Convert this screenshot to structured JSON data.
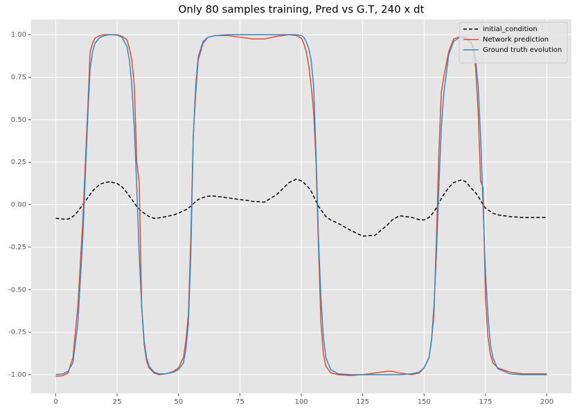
{
  "chart_data": {
    "type": "line",
    "title": "Only 80 samples training, Pred vs G.T, 240 x dt",
    "x": [
      0,
      3,
      5,
      7,
      9,
      11,
      13,
      14,
      15,
      16,
      18,
      20,
      22,
      25,
      27,
      29,
      30,
      31,
      32,
      33,
      34,
      35,
      36,
      37,
      38,
      40,
      42,
      45,
      48,
      50,
      52,
      53,
      54,
      55,
      56,
      57,
      58,
      60,
      62,
      65,
      70,
      75,
      78,
      80,
      85,
      90,
      95,
      98,
      100,
      101,
      102,
      103,
      104,
      105,
      106,
      107,
      108,
      109,
      110,
      112,
      115,
      120,
      125,
      130,
      135,
      137,
      140,
      145,
      148,
      150,
      152,
      153,
      154,
      155,
      156,
      157,
      158,
      160,
      162,
      165,
      167,
      169,
      170,
      171,
      172,
      173,
      174,
      175,
      176,
      177,
      178,
      180,
      185,
      190,
      200
    ],
    "series": [
      {
        "name": "initial_condition",
        "color": "#000000",
        "linestyle": "dashed",
        "values": [
          -0.08,
          -0.085,
          -0.085,
          -0.07,
          -0.04,
          0.0,
          0.04,
          0.06,
          0.08,
          0.095,
          0.12,
          0.13,
          0.135,
          0.125,
          0.105,
          0.07,
          0.05,
          0.03,
          0.01,
          -0.01,
          -0.025,
          -0.04,
          -0.05,
          -0.06,
          -0.07,
          -0.08,
          -0.078,
          -0.07,
          -0.06,
          -0.05,
          -0.035,
          -0.03,
          -0.02,
          -0.01,
          0.005,
          0.02,
          0.03,
          0.042,
          0.05,
          0.05,
          0.04,
          0.03,
          0.025,
          0.02,
          0.015,
          0.06,
          0.13,
          0.15,
          0.14,
          0.13,
          0.115,
          0.1,
          0.08,
          0.05,
          0.02,
          -0.01,
          -0.03,
          -0.05,
          -0.07,
          -0.09,
          -0.11,
          -0.15,
          -0.185,
          -0.18,
          -0.12,
          -0.09,
          -0.065,
          -0.075,
          -0.088,
          -0.09,
          -0.075,
          -0.06,
          -0.04,
          -0.02,
          0.01,
          0.035,
          0.06,
          0.1,
          0.13,
          0.145,
          0.135,
          0.1,
          0.085,
          0.07,
          0.05,
          0.025,
          0.0,
          -0.02,
          -0.03,
          -0.04,
          -0.05,
          -0.06,
          -0.07,
          -0.075,
          -0.075
        ]
      },
      {
        "name": "Network prediction",
        "color": "#E24A33",
        "linestyle": "solid",
        "values": [
          -1.01,
          -1.005,
          -0.99,
          -0.9,
          -0.6,
          -0.1,
          0.55,
          0.9,
          0.95,
          0.98,
          0.995,
          1.0,
          1.0,
          1.0,
          0.99,
          0.97,
          0.92,
          0.85,
          0.7,
          0.25,
          0.13,
          -0.6,
          -0.82,
          -0.92,
          -0.96,
          -0.99,
          -1.0,
          -0.995,
          -0.98,
          -0.96,
          -0.9,
          -0.8,
          -0.65,
          -0.2,
          0.4,
          0.65,
          0.85,
          0.95,
          0.985,
          0.995,
          0.995,
          0.985,
          0.98,
          0.975,
          0.975,
          0.99,
          1.0,
          0.995,
          0.98,
          0.95,
          0.9,
          0.82,
          0.7,
          0.55,
          0.25,
          -0.25,
          -0.7,
          -0.88,
          -0.95,
          -0.99,
          -1.0,
          -1.005,
          -1.0,
          -0.99,
          -0.98,
          -0.98,
          -0.99,
          -1.0,
          -0.99,
          -0.96,
          -0.9,
          -0.8,
          -0.65,
          -0.2,
          0.3,
          0.66,
          0.75,
          0.9,
          0.975,
          0.99,
          0.975,
          0.95,
          0.92,
          0.8,
          0.55,
          0.14,
          0.1,
          -0.55,
          -0.78,
          -0.88,
          -0.93,
          -0.96,
          -0.985,
          -0.995,
          -0.995
        ]
      },
      {
        "name": "Ground truth evolution",
        "color": "#348ABD",
        "linestyle": "solid",
        "values": [
          -1.0,
          -0.995,
          -0.98,
          -0.93,
          -0.7,
          -0.2,
          0.5,
          0.8,
          0.9,
          0.95,
          0.985,
          0.995,
          1.0,
          0.998,
          0.985,
          0.93,
          0.85,
          0.7,
          0.45,
          0.1,
          -0.3,
          -0.6,
          -0.8,
          -0.9,
          -0.95,
          -0.985,
          -0.995,
          -0.995,
          -0.985,
          -0.97,
          -0.93,
          -0.85,
          -0.7,
          -0.3,
          0.4,
          0.7,
          0.87,
          0.96,
          0.985,
          0.995,
          1.0,
          1.0,
          1.0,
          1.0,
          1.0,
          1.0,
          1.0,
          1.0,
          0.995,
          0.985,
          0.96,
          0.92,
          0.85,
          0.7,
          0.3,
          -0.2,
          -0.55,
          -0.78,
          -0.9,
          -0.97,
          -0.995,
          -1.0,
          -1.0,
          -1.0,
          -1.0,
          -1.0,
          -1.0,
          -0.995,
          -0.985,
          -0.96,
          -0.9,
          -0.8,
          -0.6,
          -0.3,
          0.1,
          0.45,
          0.65,
          0.88,
          0.96,
          0.99,
          0.985,
          0.96,
          0.93,
          0.85,
          0.7,
          0.4,
          0.0,
          -0.4,
          -0.65,
          -0.82,
          -0.9,
          -0.965,
          -0.995,
          -1.0,
          -1.0
        ]
      }
    ],
    "xlim": [
      -10,
      210
    ],
    "ylim": [
      -1.11,
      1.09
    ],
    "xticks": [
      0,
      25,
      50,
      75,
      100,
      125,
      150,
      175,
      200
    ],
    "yticks": [
      {
        "value": -1,
        "label": "-1.00"
      },
      {
        "value": -0.75,
        "label": "-0.75"
      },
      {
        "value": -0.5,
        "label": "-0.50"
      },
      {
        "value": -0.25,
        "label": "-0.25"
      },
      {
        "value": 0,
        "label": "0.00"
      },
      {
        "value": 0.25,
        "label": "0.25"
      },
      {
        "value": 0.5,
        "label": "0.50"
      },
      {
        "value": 0.75,
        "label": "0.75"
      },
      {
        "value": 1,
        "label": "1.00"
      }
    ],
    "grid": true,
    "legend": "upper right"
  }
}
